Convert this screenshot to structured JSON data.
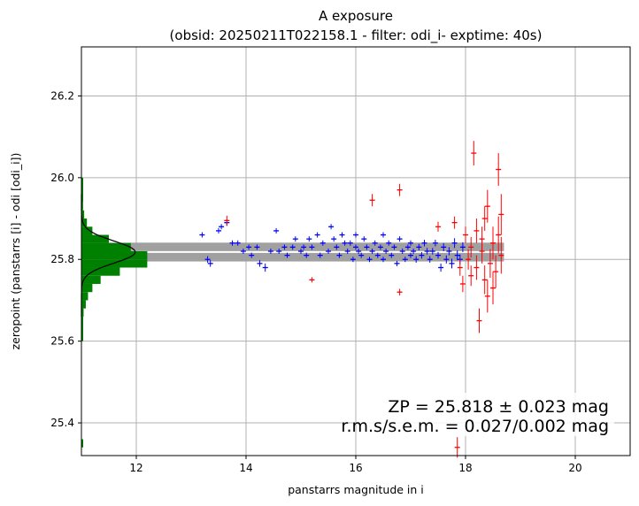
{
  "chart_data": {
    "type": "scatter",
    "title": "A exposure",
    "subtitle": "(obsid: 20250211T022158.1 - filter: odi_i- exptime: 40s)",
    "xlabel": "panstarrs magnitude in i",
    "ylabel": "zeropoint (panstarrs [i] - odi [odi_i])",
    "xlim": [
      11.0,
      21.0
    ],
    "ylim": [
      25.32,
      26.32
    ],
    "xticks": [
      "12",
      "14",
      "16",
      "18",
      "20"
    ],
    "yticks": [
      "25.4",
      "25.6",
      "25.8",
      "26.0",
      "26.2"
    ],
    "grid": true,
    "zeropoint": 25.818,
    "zp_error": 0.023,
    "annotation_line1": "ZP = 25.818 ± 0.023 mag",
    "annotation_line2": "r.m.s/s.e.m. = 0.027/0.002 mag",
    "colors": {
      "used": "#0000ff",
      "rejected": "#ff0000",
      "hist": "#008000",
      "band": "#a0a0a0",
      "fit": "#000000"
    },
    "histogram": {
      "bin_edges": [
        25.66,
        25.68,
        25.7,
        25.72,
        25.74,
        25.76,
        25.78,
        25.8,
        25.82,
        25.84,
        25.86,
        25.88,
        25.9,
        25.92,
        25.94
      ],
      "widths_mag": [
        0.04,
        0.08,
        0.12,
        0.2,
        0.35,
        0.7,
        1.2,
        1.2,
        0.9,
        0.5,
        0.2,
        0.1,
        0.05,
        0.03
      ]
    },
    "series": [
      {
        "name": "used",
        "points": [
          [
            13.2,
            25.86,
            0.005
          ],
          [
            13.3,
            25.8,
            0.008
          ],
          [
            13.35,
            25.79,
            0.008
          ],
          [
            13.5,
            25.87,
            0.006
          ],
          [
            13.55,
            25.88,
            0.006
          ],
          [
            13.65,
            25.89,
            0.008
          ],
          [
            13.75,
            25.84,
            0.006
          ],
          [
            13.85,
            25.84,
            0.006
          ],
          [
            13.95,
            25.82,
            0.005
          ],
          [
            14.05,
            25.83,
            0.006
          ],
          [
            14.1,
            25.81,
            0.006
          ],
          [
            14.2,
            25.83,
            0.006
          ],
          [
            14.25,
            25.79,
            0.008
          ],
          [
            14.35,
            25.78,
            0.01
          ],
          [
            14.45,
            25.82,
            0.006
          ],
          [
            14.55,
            25.87,
            0.006
          ],
          [
            14.6,
            25.82,
            0.006
          ],
          [
            14.7,
            25.83,
            0.006
          ],
          [
            14.75,
            25.81,
            0.006
          ],
          [
            14.85,
            25.83,
            0.006
          ],
          [
            14.9,
            25.85,
            0.006
          ],
          [
            15.0,
            25.82,
            0.006
          ],
          [
            15.05,
            25.83,
            0.006
          ],
          [
            15.1,
            25.81,
            0.006
          ],
          [
            15.15,
            25.85,
            0.006
          ],
          [
            15.2,
            25.83,
            0.006
          ],
          [
            15.3,
            25.86,
            0.006
          ],
          [
            15.35,
            25.81,
            0.006
          ],
          [
            15.4,
            25.84,
            0.006
          ],
          [
            15.5,
            25.82,
            0.006
          ],
          [
            15.55,
            25.88,
            0.006
          ],
          [
            15.6,
            25.85,
            0.006
          ],
          [
            15.65,
            25.83,
            0.006
          ],
          [
            15.7,
            25.81,
            0.006
          ],
          [
            15.75,
            25.86,
            0.006
          ],
          [
            15.8,
            25.84,
            0.006
          ],
          [
            15.85,
            25.82,
            0.006
          ],
          [
            15.9,
            25.84,
            0.006
          ],
          [
            15.95,
            25.8,
            0.006
          ],
          [
            16.0,
            25.83,
            0.006
          ],
          [
            16.0,
            25.86,
            0.006
          ],
          [
            16.05,
            25.82,
            0.006
          ],
          [
            16.1,
            25.81,
            0.006
          ],
          [
            16.15,
            25.85,
            0.006
          ],
          [
            16.2,
            25.83,
            0.006
          ],
          [
            16.25,
            25.8,
            0.006
          ],
          [
            16.3,
            25.82,
            0.006
          ],
          [
            16.35,
            25.84,
            0.006
          ],
          [
            16.4,
            25.81,
            0.006
          ],
          [
            16.45,
            25.83,
            0.006
          ],
          [
            16.5,
            25.86,
            0.006
          ],
          [
            16.5,
            25.8,
            0.006
          ],
          [
            16.55,
            25.82,
            0.006
          ],
          [
            16.6,
            25.84,
            0.006
          ],
          [
            16.65,
            25.81,
            0.006
          ],
          [
            16.7,
            25.83,
            0.006
          ],
          [
            16.75,
            25.79,
            0.006
          ],
          [
            16.8,
            25.85,
            0.006
          ],
          [
            16.85,
            25.82,
            0.006
          ],
          [
            16.9,
            25.8,
            0.006
          ],
          [
            16.95,
            25.83,
            0.006
          ],
          [
            17.0,
            25.81,
            0.006
          ],
          [
            17.0,
            25.84,
            0.006
          ],
          [
            17.05,
            25.82,
            0.006
          ],
          [
            17.1,
            25.8,
            0.008
          ],
          [
            17.15,
            25.83,
            0.008
          ],
          [
            17.2,
            25.81,
            0.008
          ],
          [
            17.25,
            25.84,
            0.008
          ],
          [
            17.3,
            25.82,
            0.008
          ],
          [
            17.35,
            25.8,
            0.008
          ],
          [
            17.4,
            25.82,
            0.008
          ],
          [
            17.45,
            25.84,
            0.008
          ],
          [
            17.5,
            25.81,
            0.008
          ],
          [
            17.55,
            25.78,
            0.01
          ],
          [
            17.6,
            25.83,
            0.01
          ],
          [
            17.65,
            25.8,
            0.01
          ],
          [
            17.7,
            25.82,
            0.01
          ],
          [
            17.75,
            25.79,
            0.012
          ],
          [
            17.8,
            25.84,
            0.012
          ],
          [
            17.85,
            25.81,
            0.012
          ],
          [
            17.9,
            25.8,
            0.012
          ],
          [
            17.95,
            25.83,
            0.012
          ]
        ]
      },
      {
        "name": "rejected",
        "points": [
          [
            13.65,
            25.895,
            0.012
          ],
          [
            15.2,
            25.75,
            0.005
          ],
          [
            16.3,
            25.945,
            0.015
          ],
          [
            16.8,
            25.97,
            0.015
          ],
          [
            16.8,
            25.72,
            0.008
          ],
          [
            17.5,
            25.88,
            0.012
          ],
          [
            17.8,
            25.89,
            0.015
          ],
          [
            17.9,
            25.78,
            0.02
          ],
          [
            17.95,
            25.74,
            0.02
          ],
          [
            17.85,
            25.34,
            0.025
          ],
          [
            18.0,
            25.86,
            0.02
          ],
          [
            18.05,
            25.8,
            0.025
          ],
          [
            18.1,
            25.83,
            0.025
          ],
          [
            18.15,
            26.06,
            0.03
          ],
          [
            18.2,
            25.78,
            0.03
          ],
          [
            18.2,
            25.87,
            0.03
          ],
          [
            18.25,
            25.65,
            0.03
          ],
          [
            18.3,
            25.82,
            0.03
          ],
          [
            18.35,
            25.9,
            0.03
          ],
          [
            18.35,
            25.75,
            0.035
          ],
          [
            18.4,
            25.93,
            0.04
          ],
          [
            18.45,
            25.79,
            0.035
          ],
          [
            18.5,
            25.84,
            0.04
          ],
          [
            18.55,
            25.77,
            0.04
          ],
          [
            18.6,
            26.02,
            0.04
          ],
          [
            18.6,
            25.86,
            0.045
          ],
          [
            18.65,
            25.81,
            0.045
          ],
          [
            18.65,
            25.91,
            0.05
          ],
          [
            18.4,
            25.71,
            0.04
          ],
          [
            18.3,
            25.85,
            0.03
          ],
          [
            18.5,
            25.73,
            0.04
          ],
          [
            18.1,
            25.76,
            0.025
          ]
        ]
      }
    ]
  }
}
